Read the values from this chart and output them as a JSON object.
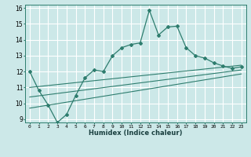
{
  "xlabel": "Humidex (Indice chaleur)",
  "bg_color": "#cce8e8",
  "grid_color": "#ffffff",
  "line_color": "#2e7d6e",
  "xlim": [
    -0.5,
    23.5
  ],
  "ylim": [
    8.8,
    16.2
  ],
  "xticks": [
    0,
    1,
    2,
    3,
    4,
    5,
    6,
    7,
    8,
    9,
    10,
    11,
    12,
    13,
    14,
    15,
    16,
    17,
    18,
    19,
    20,
    21,
    22,
    23
  ],
  "yticks": [
    9,
    10,
    11,
    12,
    13,
    14,
    15,
    16
  ],
  "main_x": [
    0,
    1,
    2,
    3,
    4,
    5,
    6,
    7,
    8,
    9,
    10,
    11,
    12,
    13,
    14,
    15,
    16,
    17,
    18,
    19,
    20,
    21,
    22,
    23
  ],
  "main_y": [
    12.0,
    10.8,
    9.9,
    8.8,
    9.3,
    10.5,
    11.6,
    12.1,
    12.0,
    13.0,
    13.5,
    13.7,
    13.8,
    15.85,
    14.3,
    14.8,
    14.85,
    13.5,
    13.0,
    12.85,
    12.55,
    12.35,
    12.2,
    12.3
  ],
  "line1_x": [
    0,
    23
  ],
  "line1_y": [
    11.0,
    12.4
  ],
  "line2_x": [
    0,
    23
  ],
  "line2_y": [
    10.4,
    12.1
  ],
  "line3_x": [
    0,
    23
  ],
  "line3_y": [
    9.7,
    11.85
  ]
}
